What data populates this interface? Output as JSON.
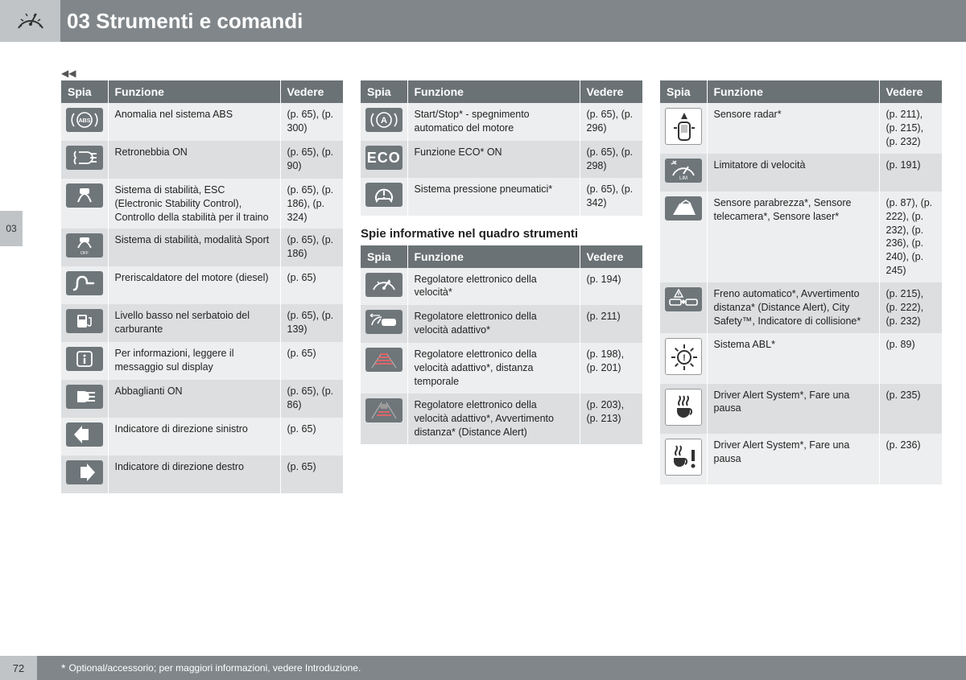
{
  "chapter_num": "03",
  "chapter_title": "Strumenti e comandi",
  "side_tab": "03",
  "continue_marker": "◀◀",
  "page_number": "72",
  "footnote": "Optional/accessorio; per maggiori informazioni, vedere Introduzione.",
  "footnote_star": "*",
  "headers": {
    "spia": "Spia",
    "funzione": "Funzione",
    "vedere": "Vedere"
  },
  "subheading_col2": "Spie informative nel quadro strumenti",
  "colors": {
    "header_bg": "#808689",
    "light_box": "#c0c4c6",
    "table_header": "#6a7275",
    "row_even": "#edeeef",
    "row_odd": "#dcdee0",
    "icon_bg": "#6e767a"
  },
  "col1": [
    {
      "icon": "abs",
      "funzione": "Anomalia nel sistema ABS",
      "vedere": "(p. 65), (p. 300)"
    },
    {
      "icon": "rearfog",
      "funzione": "Retronebbia ON",
      "vedere": "(p. 65), (p. 90)"
    },
    {
      "icon": "esc",
      "funzione": "Sistema di stabilità, ESC (Electronic Stability Control), Controllo della stabilità per il traino",
      "vedere": "(p. 65), (p. 186), (p. 324)"
    },
    {
      "icon": "esc-off",
      "funzione": "Sistema di stabilità, modalità Sport",
      "vedere": "(p. 65), (p. 186)"
    },
    {
      "icon": "preheat",
      "funzione": "Preriscaldatore del motore (diesel)",
      "vedere": "(p. 65)"
    },
    {
      "icon": "fuel",
      "funzione": "Livello basso nel serbatoio del carburante",
      "vedere": "(p. 65), (p. 139)"
    },
    {
      "icon": "info",
      "funzione": "Per informazioni, leggere il messaggio sul display",
      "vedere": "(p. 65)"
    },
    {
      "icon": "highbeam",
      "funzione": "Abbaglianti ON",
      "vedere": "(p. 65), (p. 86)"
    },
    {
      "icon": "left",
      "funzione": "Indicatore di direzione sinistro",
      "vedere": "(p. 65)"
    },
    {
      "icon": "right",
      "funzione": "Indicatore di direzione destro",
      "vedere": "(p. 65)"
    }
  ],
  "col2a": [
    {
      "icon": "startstop",
      "funzione": "Start/Stop* - spegnimento automatico del motore",
      "vedere": "(p. 65), (p. 296)"
    },
    {
      "icon": "eco",
      "funzione": "Funzione ECO* ON",
      "vedere": "(p. 65), (p. 298)"
    },
    {
      "icon": "tpms",
      "funzione": "Sistema pressione pneumatici*",
      "vedere": "(p. 65), (p. 342)"
    }
  ],
  "col2b": [
    {
      "icon": "cruise",
      "funzione": "Regolatore elettronico della velocità*",
      "vedere": "(p. 194)"
    },
    {
      "icon": "acc",
      "funzione": "Regolatore elettronico della velocità adattivo*",
      "vedere": "(p. 211)"
    },
    {
      "icon": "distance",
      "funzione": "Regolatore elettronico della velocità adattivo*, distanza temporale",
      "vedere": "(p. 198), (p. 201)"
    },
    {
      "icon": "distalert",
      "funzione": "Regolatore elettronico della velocità adattivo*, Avvertimento distanza* (Distance Alert)",
      "vedere": "(p. 203), (p. 213)"
    }
  ],
  "col3": [
    {
      "icon": "radar",
      "big": true,
      "inverse": true,
      "funzione": "Sensore radar*",
      "vedere": "(p. 211), (p. 215), (p. 232)"
    },
    {
      "icon": "limiter",
      "funzione": "Limitatore di velocità",
      "vedere": "(p. 191)"
    },
    {
      "icon": "windshield",
      "funzione": "Sensore parabrezza*, Sensore telecamera*, Sensore laser*",
      "vedere": "(p. 87), (p. 222), (p. 232), (p. 236), (p. 240), (p. 245)"
    },
    {
      "icon": "collision",
      "funzione": "Freno automatico*, Avvertimento distanza* (Distance Alert), City Safety™, Indicatore di collisione*",
      "vedere": "(p. 215), (p. 222), (p. 232)"
    },
    {
      "icon": "abl",
      "big": true,
      "inverse": true,
      "funzione": "Sistema ABL*",
      "vedere": "(p. 89)"
    },
    {
      "icon": "coffee",
      "big": true,
      "inverse": true,
      "funzione": "Driver Alert System*, Fare una pausa",
      "vedere": "(p. 235)"
    },
    {
      "icon": "coffee-alert",
      "big": true,
      "inverse": true,
      "funzione": "Driver Alert System*, Fare una pausa",
      "vedere": "(p. 236)"
    }
  ]
}
